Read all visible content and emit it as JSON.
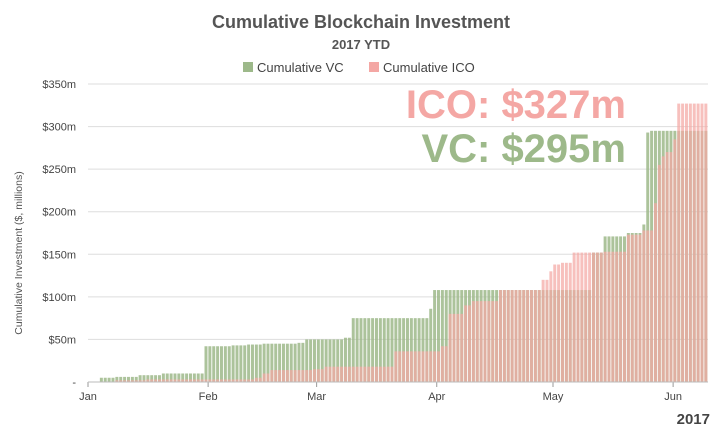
{
  "chart_data": {
    "type": "bar",
    "title": "Cumulative Blockchain Investment",
    "subtitle": "2017 YTD",
    "ylabel": "Cumulative Investment ($, millions)",
    "year_label": "2017",
    "ylim": [
      0,
      350
    ],
    "yticks": [
      {
        "value": 0,
        "label": "-"
      },
      {
        "value": 50,
        "label": "$50m"
      },
      {
        "value": 100,
        "label": "$100m"
      },
      {
        "value": 150,
        "label": "$150m"
      },
      {
        "value": 200,
        "label": "$200m"
      },
      {
        "value": 250,
        "label": "$250m"
      },
      {
        "value": 300,
        "label": "$300m"
      },
      {
        "value": 350,
        "label": "$350m"
      }
    ],
    "xticks": [
      {
        "label": "Jan",
        "day": 1
      },
      {
        "label": "Feb",
        "day": 32
      },
      {
        "label": "Mar",
        "day": 60
      },
      {
        "label": "Apr",
        "day": 91
      },
      {
        "label": "May",
        "day": 121
      },
      {
        "label": "Jun",
        "day": 152
      }
    ],
    "x_domain_days": [
      1,
      160
    ],
    "legend": {
      "placement": "top-center"
    },
    "grid": true,
    "annotations": [
      {
        "text": "ICO: $327m",
        "series": "Cumulative ICO"
      },
      {
        "text": "VC: $295m",
        "series": "Cumulative VC"
      }
    ],
    "series": [
      {
        "name": "Cumulative VC",
        "color": "#9db98a",
        "steps": [
          {
            "day": 4,
            "value": 5
          },
          {
            "day": 8,
            "value": 6
          },
          {
            "day": 14,
            "value": 8
          },
          {
            "day": 20,
            "value": 10
          },
          {
            "day": 31,
            "value": 42
          },
          {
            "day": 38,
            "value": 43
          },
          {
            "day": 42,
            "value": 44
          },
          {
            "day": 46,
            "value": 45
          },
          {
            "day": 55,
            "value": 46
          },
          {
            "day": 57,
            "value": 50
          },
          {
            "day": 67,
            "value": 52
          },
          {
            "day": 69,
            "value": 75
          },
          {
            "day": 89,
            "value": 86
          },
          {
            "day": 90,
            "value": 108
          },
          {
            "day": 131,
            "value": 152
          },
          {
            "day": 134,
            "value": 171
          },
          {
            "day": 140,
            "value": 175
          },
          {
            "day": 144,
            "value": 185
          },
          {
            "day": 145,
            "value": 293
          },
          {
            "day": 146,
            "value": 295
          }
        ]
      },
      {
        "name": "Cumulative ICO",
        "color": "#f4a7a4",
        "steps": [
          {
            "day": 8,
            "value": 2
          },
          {
            "day": 16,
            "value": 3
          },
          {
            "day": 44,
            "value": 5
          },
          {
            "day": 46,
            "value": 10
          },
          {
            "day": 48,
            "value": 14
          },
          {
            "day": 59,
            "value": 15
          },
          {
            "day": 62,
            "value": 18
          },
          {
            "day": 80,
            "value": 36
          },
          {
            "day": 92,
            "value": 42
          },
          {
            "day": 94,
            "value": 80
          },
          {
            "day": 98,
            "value": 90
          },
          {
            "day": 100,
            "value": 95
          },
          {
            "day": 107,
            "value": 108
          },
          {
            "day": 118,
            "value": 120
          },
          {
            "day": 120,
            "value": 130
          },
          {
            "day": 121,
            "value": 138
          },
          {
            "day": 123,
            "value": 140
          },
          {
            "day": 126,
            "value": 152
          },
          {
            "day": 134,
            "value": 153
          },
          {
            "day": 140,
            "value": 173
          },
          {
            "day": 144,
            "value": 178
          },
          {
            "day": 147,
            "value": 210
          },
          {
            "day": 148,
            "value": 255
          },
          {
            "day": 149,
            "value": 265
          },
          {
            "day": 150,
            "value": 270
          },
          {
            "day": 152,
            "value": 285
          },
          {
            "day": 153,
            "value": 327
          }
        ]
      }
    ]
  }
}
